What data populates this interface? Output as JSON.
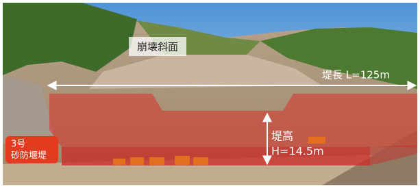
{
  "photo": {
    "slope_label": "崩壊斜面",
    "length_label": "堤長 L=125m",
    "height_label_1": "堤高",
    "height_label_2": "H=14.5m",
    "dam_label_1": "3号",
    "dam_label_2": "砂防堰堤"
  }
}
